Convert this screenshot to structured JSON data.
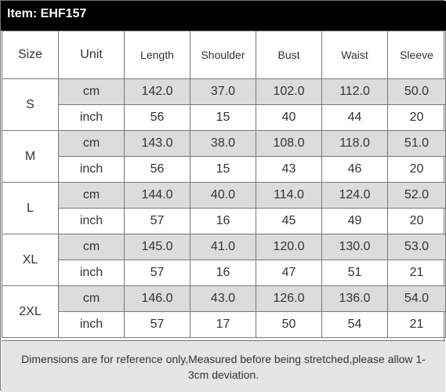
{
  "item_title": "Item: EHF157",
  "headers": [
    "Size",
    "Unit",
    "Length",
    "Shoulder",
    "Bust",
    "Waist",
    "Sleeve"
  ],
  "rows": [
    {
      "size": "S",
      "cm": [
        "cm",
        "142.0",
        "37.0",
        "102.0",
        "112.0",
        "50.0"
      ],
      "inch": [
        "inch",
        "56",
        "15",
        "40",
        "44",
        "20"
      ]
    },
    {
      "size": "M",
      "cm": [
        "cm",
        "143.0",
        "38.0",
        "108.0",
        "118.0",
        "51.0"
      ],
      "inch": [
        "inch",
        "56",
        "15",
        "43",
        "46",
        "20"
      ]
    },
    {
      "size": "L",
      "cm": [
        "cm",
        "144.0",
        "40.0",
        "114.0",
        "124.0",
        "52.0"
      ],
      "inch": [
        "inch",
        "57",
        "16",
        "45",
        "49",
        "20"
      ]
    },
    {
      "size": "XL",
      "cm": [
        "cm",
        "145.0",
        "41.0",
        "120.0",
        "130.0",
        "53.0"
      ],
      "inch": [
        "inch",
        "57",
        "16",
        "47",
        "51",
        "21"
      ]
    },
    {
      "size": "2XL",
      "cm": [
        "cm",
        "146.0",
        "43.0",
        "126.0",
        "136.0",
        "54.0"
      ],
      "inch": [
        "inch",
        "57",
        "17",
        "50",
        "54",
        "21"
      ]
    }
  ],
  "footnote": "Dimensions are for reference only,Measured before being stretched,please allow 1-3cm deviation."
}
